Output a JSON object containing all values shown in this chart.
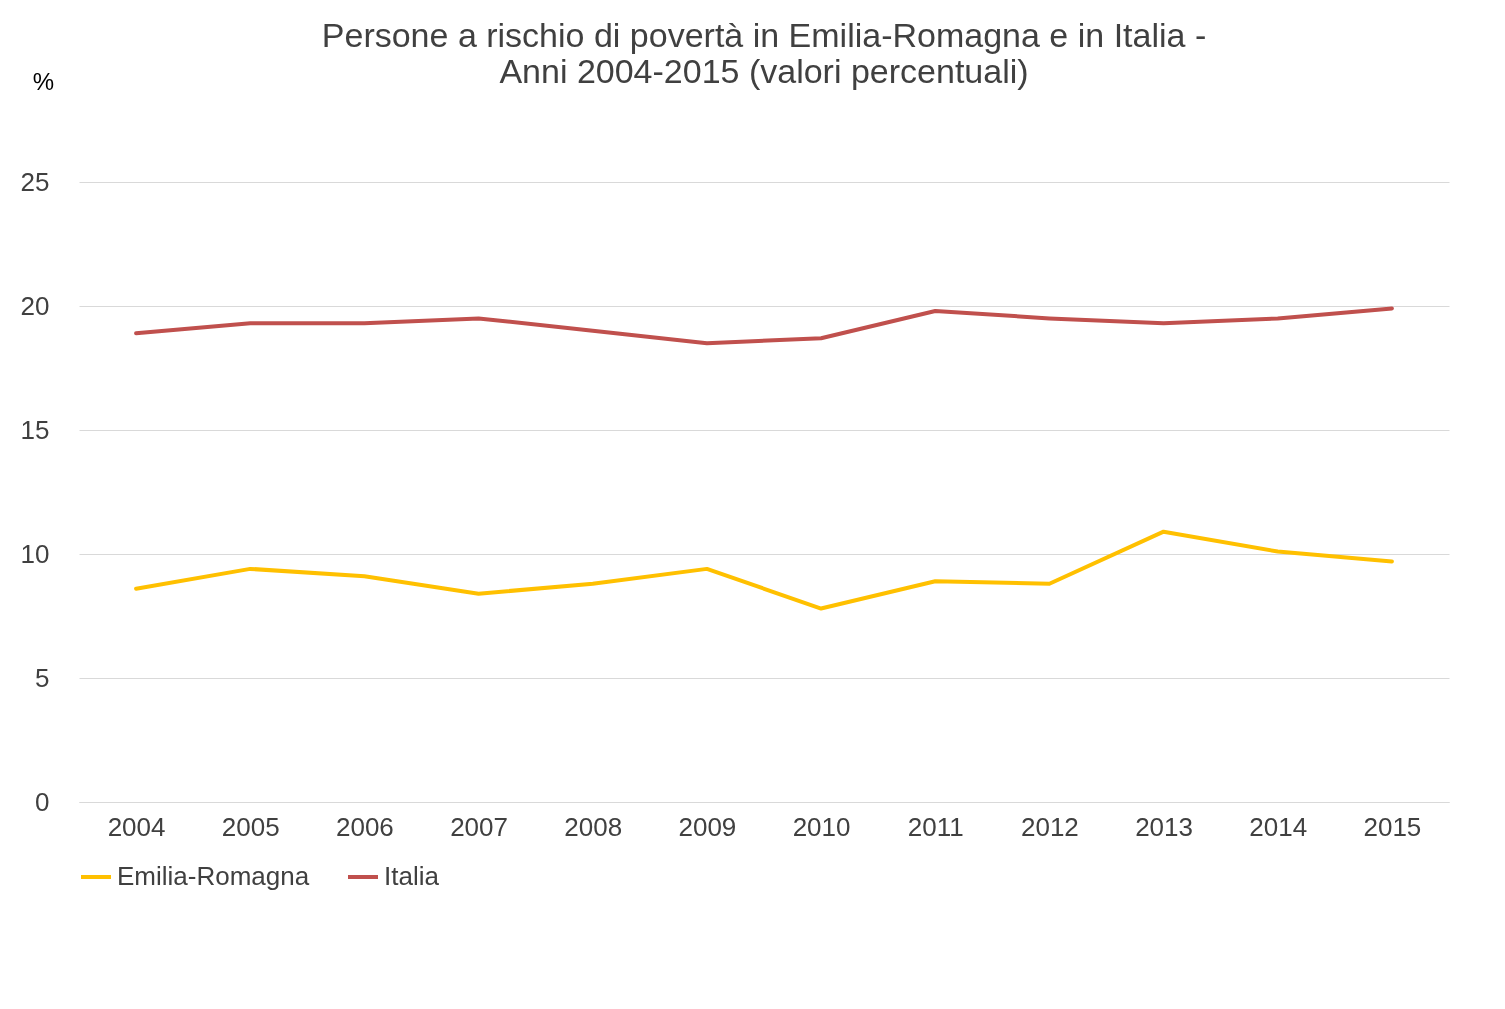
{
  "chart_data": {
    "type": "line",
    "title": "Persone a rischio di povertà in Emilia-Romagna e in Italia -\nAnni 2004-2015 (valori percentuali)",
    "ylabel": "%",
    "categories": [
      "2004",
      "2005",
      "2006",
      "2007",
      "2008",
      "2009",
      "2010",
      "2011",
      "2012",
      "2013",
      "2014",
      "2015"
    ],
    "series": [
      {
        "name": "Emilia-Romagna",
        "color": "#ffc000",
        "values": [
          8.6,
          9.4,
          9.1,
          8.4,
          8.8,
          9.4,
          7.8,
          8.9,
          8.8,
          10.9,
          10.1,
          9.7
        ]
      },
      {
        "name": "Italia",
        "color": "#c0504d",
        "values": [
          18.9,
          19.3,
          19.3,
          19.5,
          19.0,
          18.5,
          18.7,
          19.8,
          19.5,
          19.3,
          19.5,
          19.9
        ]
      }
    ],
    "ylim": [
      0,
      25
    ],
    "yticks": [
      0,
      5,
      10,
      15,
      20,
      25
    ],
    "grid": "y",
    "legend": "bottom"
  }
}
